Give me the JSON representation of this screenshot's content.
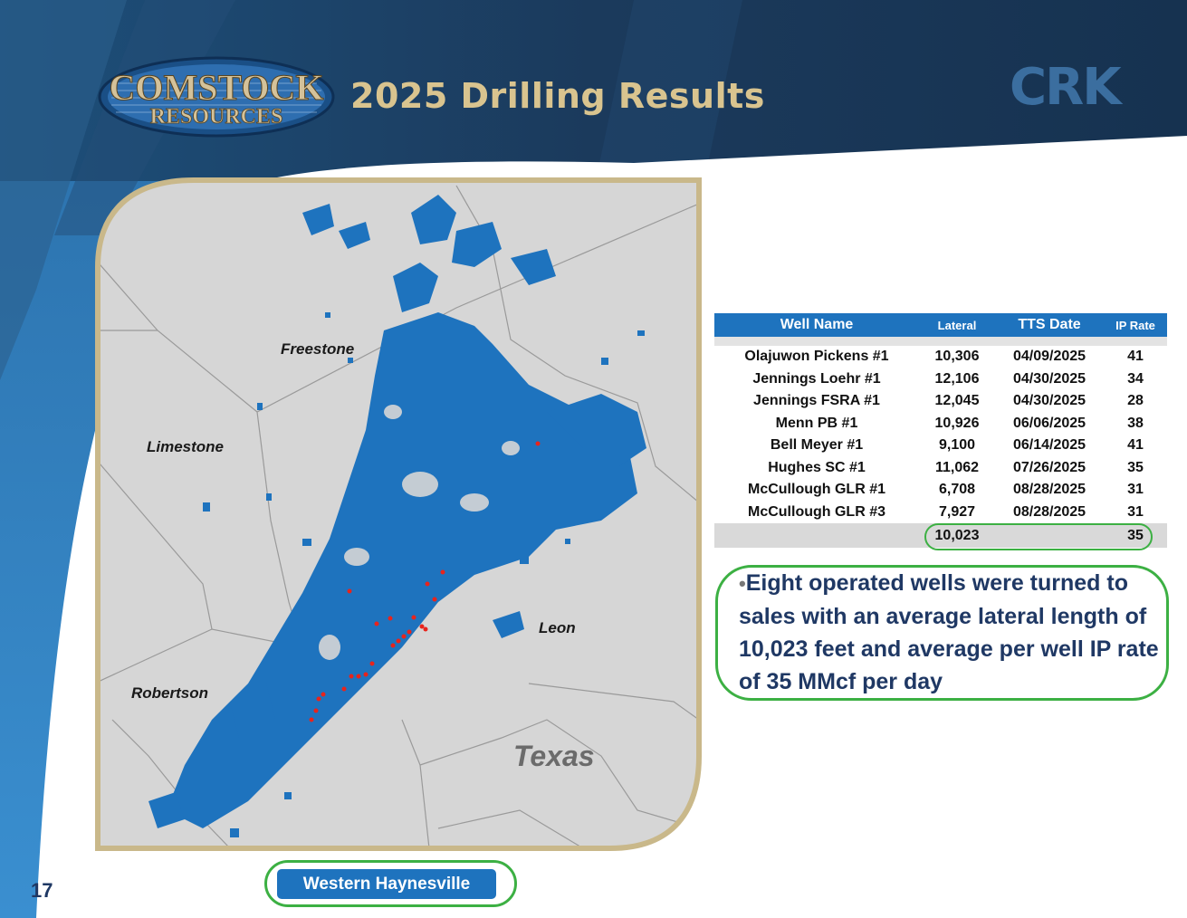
{
  "header": {
    "logo_top": "COMSTOCK",
    "logo_bottom": "RESOURCES",
    "title": "2025 Drilling Results",
    "ticker": "CRK"
  },
  "map": {
    "labels": {
      "freestone": "Freestone",
      "limestone": "Limestone",
      "leon": "Leon",
      "robertson": "Robertson",
      "texas": "Texas"
    },
    "button_label": "Western Haynesville"
  },
  "table": {
    "headers": [
      "Well Name",
      "Lateral",
      "TTS Date",
      "IP Rate"
    ],
    "rows": [
      [
        "Olajuwon Pickens #1",
        "10,306",
        "04/09/2025",
        "41"
      ],
      [
        "Jennings Loehr #1",
        "12,106",
        "04/30/2025",
        "34"
      ],
      [
        "Jennings FSRA #1",
        "12,045",
        "04/30/2025",
        "28"
      ],
      [
        "Menn PB #1",
        "10,926",
        "06/06/2025",
        "38"
      ],
      [
        "Bell Meyer #1",
        "9,100",
        "06/14/2025",
        "41"
      ],
      [
        "Hughes SC #1",
        "11,062",
        "07/26/2025",
        "35"
      ],
      [
        "McCullough GLR #1",
        "6,708",
        "08/28/2025",
        "31"
      ],
      [
        "McCullough GLR #3",
        "7,927",
        "08/28/2025",
        "31"
      ]
    ],
    "total": {
      "lateral": "10,023",
      "ip_rate": "35"
    }
  },
  "bullet": {
    "marker": "•",
    "text": "Eight operated wells were turned to sales with an average lateral length of 10,023 feet and average per well IP rate of 35 MMcf per day"
  },
  "page_number": "17",
  "colors": {
    "header_dark": "#1b3a5c",
    "title_gold": "#d9c48f",
    "acreage_blue": "#1e73be",
    "highlight_green": "#3cb043",
    "frame_gold": "#c9b88a"
  }
}
